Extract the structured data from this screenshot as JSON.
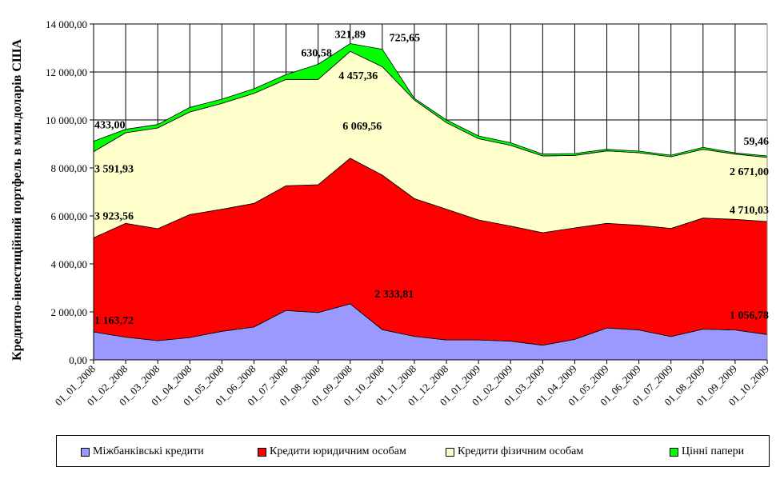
{
  "chart_data": {
    "type": "area",
    "stacked": true,
    "title": "",
    "xlabel": "",
    "ylabel": "Кредитно-інвестиційний портфель в млн.доларів США",
    "ylim": [
      0,
      14000
    ],
    "yticks": [
      "0,00",
      "2 000,00",
      "4 000,00",
      "6 000,00",
      "8 000,00",
      "10 000,00",
      "12 000,00",
      "14 000,00"
    ],
    "grid": true,
    "legend_position": "bottom",
    "categories": [
      "01_01_2008",
      "01_02_2008",
      "01_03_2008",
      "01_04_2008",
      "01_05_2008",
      "01_06_2008",
      "01_07_2008",
      "01_08_2008",
      "01_09_2008",
      "01_10_2008",
      "01_11_2008",
      "01_12_2008",
      "01_01_2009",
      "01_02_2009",
      "01_03_2009",
      "01_04_2009",
      "01_05_2009",
      "01_06_2009",
      "01_07_2009",
      "01_08_2009",
      "01_09_2009",
      "01_10_2009"
    ],
    "series": [
      {
        "name": "Міжбанківські кредити",
        "color": "#9999ff",
        "values": [
          1163.72,
          945,
          800,
          930,
          1190,
          1370,
          2060,
          1970,
          2333.81,
          1260,
          980,
          830,
          830,
          780,
          610,
          855,
          1330,
          1245,
          970,
          1280,
          1245,
          1056.78
        ],
        "data_labels": [
          {
            "index": 0,
            "text": "1 163,72"
          },
          {
            "index": 8,
            "text": "2 333,81"
          },
          {
            "index": 21,
            "text": "1 056,78"
          }
        ]
      },
      {
        "name": "Кредити юридичним особам",
        "color": "#ff0000",
        "values": [
          3923.56,
          4745,
          4667,
          5126,
          5087,
          5153,
          5196,
          5330,
          6069.56,
          6440,
          5742,
          5450,
          5003,
          4797,
          4690,
          4645,
          4360,
          4365,
          4507,
          4630,
          4611,
          4710.03
        ],
        "data_labels": [
          {
            "index": 0,
            "text": "3 923,56"
          },
          {
            "index": 8,
            "text": "6 069,56"
          },
          {
            "index": 21,
            "text": "4 710,03"
          }
        ]
      },
      {
        "name": "Кредити фізичним особам",
        "color": "#ffffcc",
        "values": [
          3591.93,
          3777,
          4200,
          4277,
          4413,
          4587,
          4434,
          4390,
          4457.36,
          4522,
          4111,
          3610,
          3389,
          3366,
          3200,
          3023,
          3020,
          3023,
          2990,
          2867,
          2721,
          2671.0
        ],
        "data_labels": [
          {
            "index": 0,
            "text": "3 591,93"
          },
          {
            "index": 8,
            "text": "4 457,36"
          },
          {
            "index": 21,
            "text": "2 671,00"
          }
        ]
      },
      {
        "name": "Цінні папери",
        "color": "#00ff00",
        "values": [
          433.0,
          143,
          143,
          190,
          177,
          190,
          200,
          630.58,
          321.89,
          725.65,
          67,
          110,
          111,
          107,
          77,
          77,
          67,
          67,
          63,
          80,
          53,
          59.46
        ],
        "data_labels": [
          {
            "index": 0,
            "text": "433,00"
          },
          {
            "index": 7,
            "text": "630,58"
          },
          {
            "index": 8,
            "text": "321,89"
          },
          {
            "index": 9,
            "text": "725,65"
          },
          {
            "index": 21,
            "text": "59,46"
          }
        ]
      }
    ]
  }
}
